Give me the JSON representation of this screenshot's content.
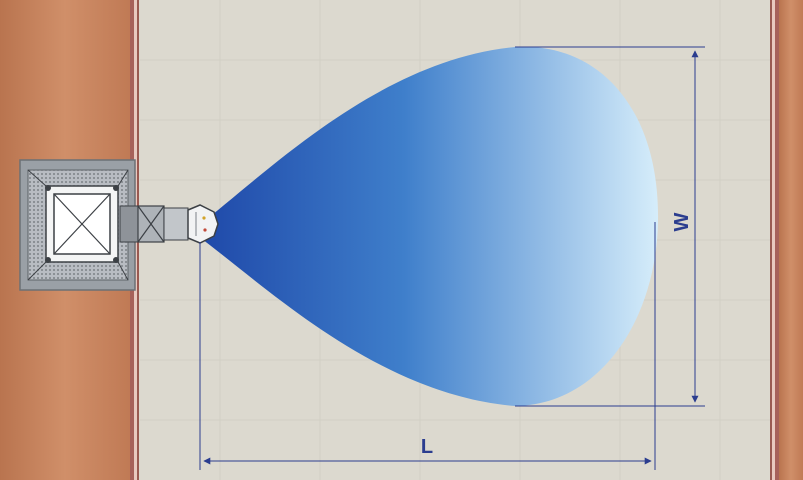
{
  "dimensions": {
    "width_label": "W",
    "length_label": "L"
  },
  "colors": {
    "wall": "#c98660",
    "floor": "#dcd9cf",
    "dimension_line": "#2b3d8f",
    "jet_start": "#1e47a8",
    "jet_end": "#d7eefb",
    "unit_frame": "#9aa0a6"
  }
}
